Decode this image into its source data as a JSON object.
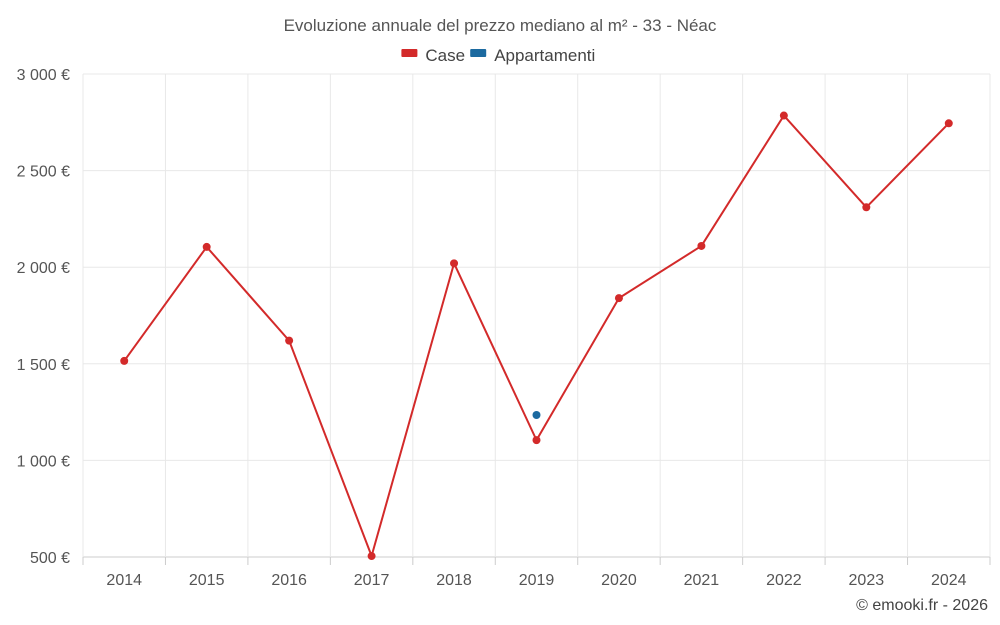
{
  "chart_data": {
    "type": "line",
    "title": "Evoluzione annuale del prezzo mediano al m² - 33 - Néac",
    "categories": [
      "2014",
      "2015",
      "2016",
      "2017",
      "2018",
      "2019",
      "2020",
      "2021",
      "2022",
      "2023",
      "2024"
    ],
    "ylim": [
      500,
      3000
    ],
    "yticks": [
      500,
      1000,
      1500,
      2000,
      2500,
      3000
    ],
    "ytick_labels": [
      "500 €",
      "1 000 €",
      "1 500 €",
      "2 000 €",
      "2 500 €",
      "3 000 €"
    ],
    "grid": true,
    "legend_position": "top-center",
    "series": [
      {
        "name": "Case",
        "color": "#d32a2a",
        "values": [
          1515,
          2105,
          1620,
          505,
          2020,
          1105,
          1840,
          2110,
          2785,
          2310,
          2745
        ]
      },
      {
        "name": "Appartamenti",
        "color": "#1c6aa0",
        "values": [
          null,
          null,
          null,
          null,
          null,
          1235,
          null,
          null,
          null,
          null,
          null
        ]
      }
    ]
  },
  "credit": "© emooki.fr - 2026"
}
